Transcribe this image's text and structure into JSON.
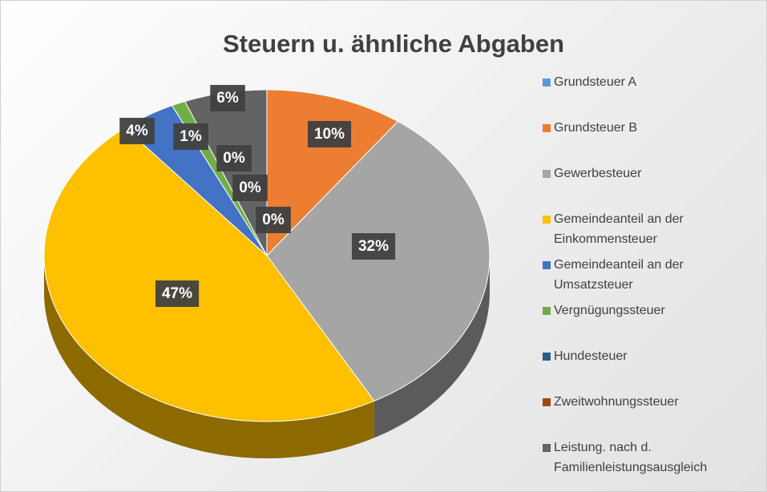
{
  "chart_data": {
    "type": "pie3d",
    "title": "Steuern u. ähnliche Abgaben",
    "categories": [
      "Grundsteuer A",
      "Grundsteuer B",
      "Gewerbesteuer",
      "Gemeindeanteil an der Einkommensteuer",
      "Gemeindeanteil an der Umsatzsteuer",
      "Vergnügungssteuer",
      "Hundesteuer",
      "Zweitwohnungssteuer",
      "Leistung. nach d. Familienleistungsausgleich"
    ],
    "values": [
      0,
      10,
      32,
      47,
      4,
      1,
      0,
      0,
      6
    ],
    "value_labels": [
      "0%",
      "10%",
      "32%",
      "47%",
      "4%",
      "1%",
      "0%",
      "0%",
      "6%"
    ],
    "colors": [
      "#5b9bd5",
      "#ed7d31",
      "#a5a5a5",
      "#ffc000",
      "#4472c4",
      "#70ad47",
      "#255e91",
      "#9e480e",
      "#636363"
    ],
    "legend": "right"
  }
}
